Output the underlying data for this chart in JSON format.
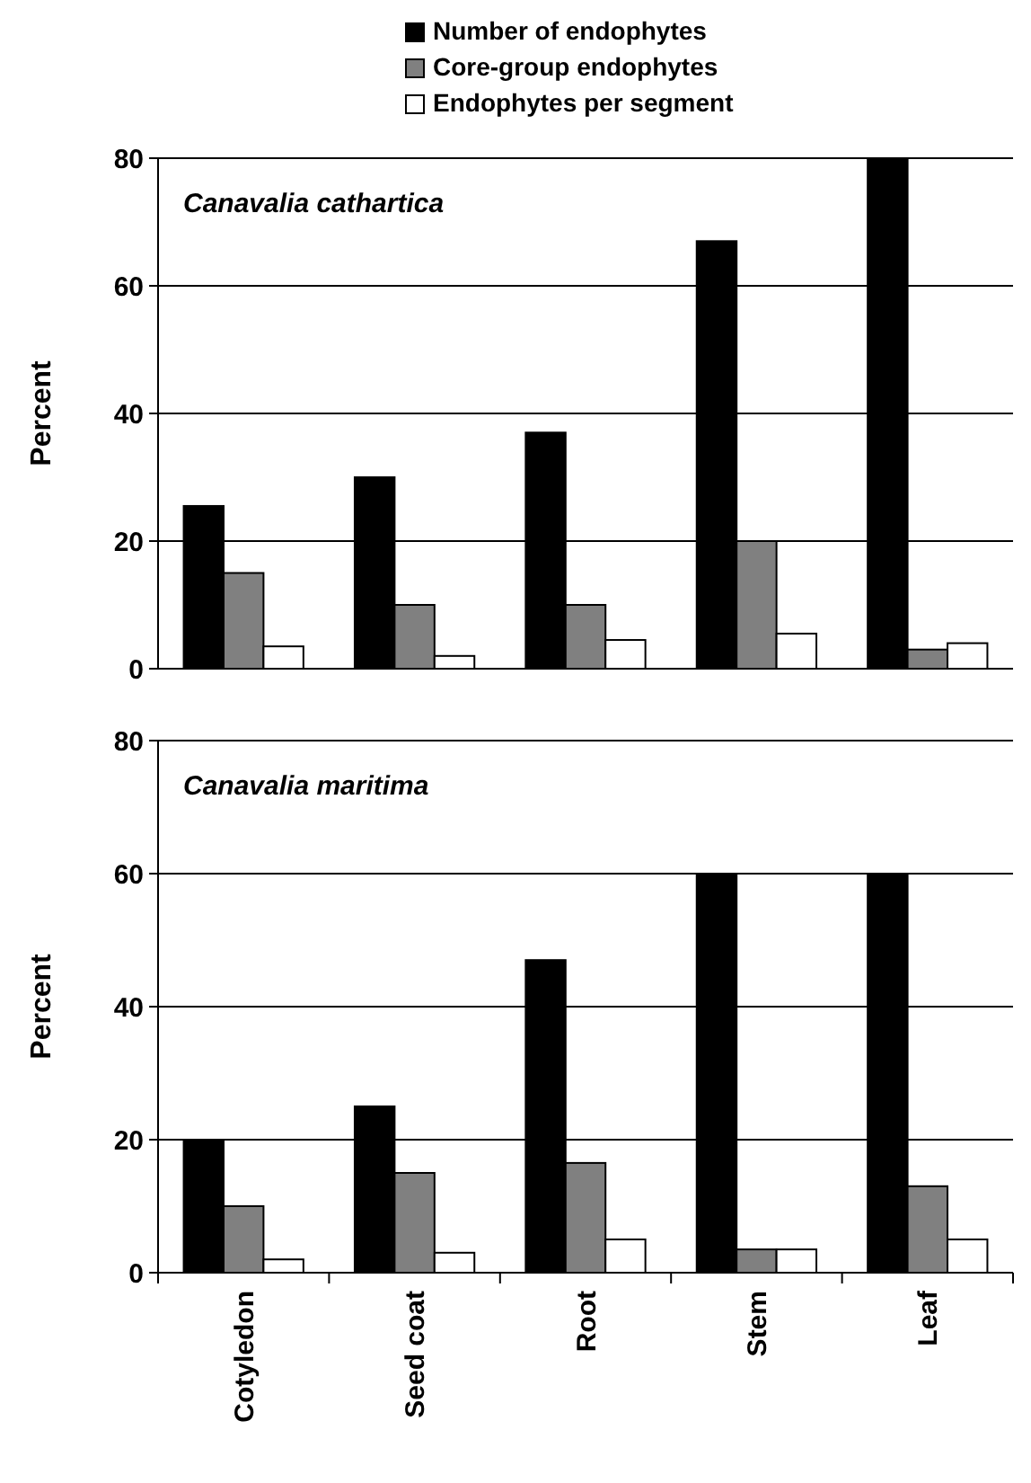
{
  "chart_data": [
    {
      "type": "bar",
      "ylabel": "Percent",
      "annotations": [
        "Canavalia cathartica"
      ],
      "categories": [
        null,
        null,
        null,
        null,
        null
      ],
      "ylim": [
        0,
        80
      ],
      "yticks": [
        0,
        20,
        40,
        60,
        80
      ],
      "grid": "y",
      "legend": "top",
      "tick_labels": "y",
      "series": [
        {
          "name": "Number of endophytes",
          "color": "#000000",
          "values": [
            25.5,
            30,
            37,
            67,
            80
          ]
        },
        {
          "name": "Core-group endophytes",
          "color": "#808080",
          "values": [
            15,
            10,
            10,
            20,
            3
          ]
        },
        {
          "name": "Endophytes per segment",
          "color": "#ffffff",
          "values": [
            3.5,
            2,
            4.5,
            5.5,
            4
          ]
        }
      ]
    },
    {
      "type": "bar",
      "ylabel": "Percent",
      "annotations": [
        "Canavalia maritima"
      ],
      "categories": [
        "Cotyledon",
        "Seed coat",
        "Root",
        "Stem",
        "Leaf"
      ],
      "ylim": [
        0,
        80
      ],
      "yticks": [
        0,
        20,
        40,
        60,
        80
      ],
      "grid": "y",
      "series": [
        {
          "color": "#000000",
          "values": [
            20,
            25,
            47,
            60,
            60
          ]
        },
        {
          "color": "#808080",
          "values": [
            10,
            15,
            16.5,
            3.5,
            13
          ]
        },
        {
          "color": "#ffffff",
          "values": [
            2,
            3,
            5,
            3.5,
            5
          ]
        }
      ]
    }
  ]
}
